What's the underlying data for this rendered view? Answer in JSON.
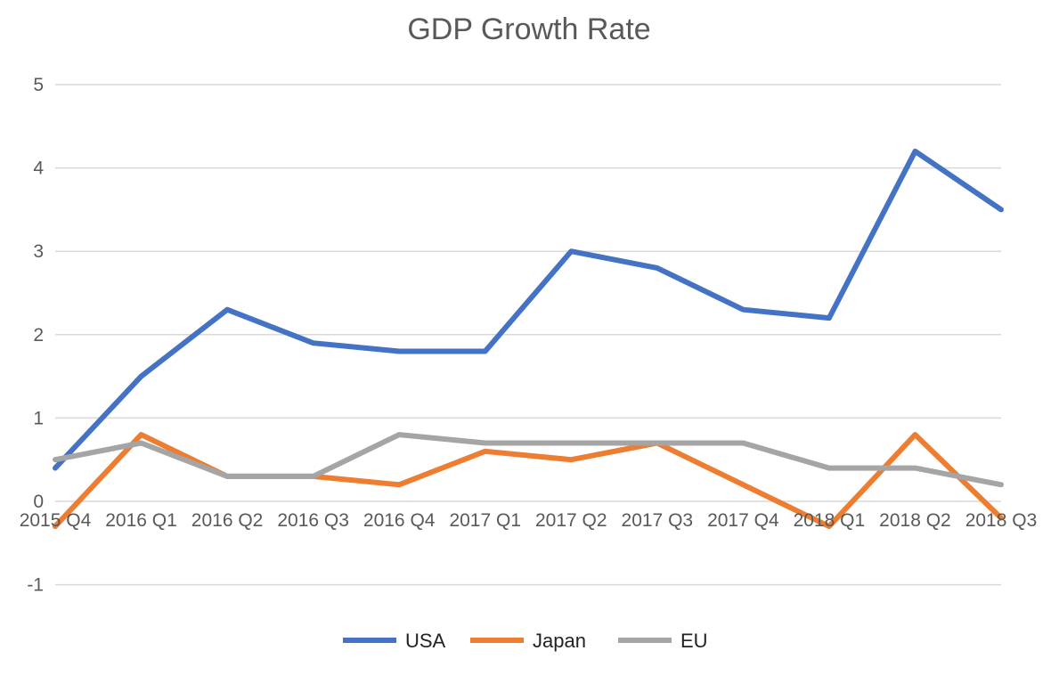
{
  "chart_data": {
    "type": "line",
    "title": "GDP Growth Rate",
    "xlabel": "",
    "ylabel": "",
    "ylim": [
      -1,
      5
    ],
    "yticks": [
      5,
      4,
      3,
      2,
      1,
      0,
      -1
    ],
    "grid": true,
    "legend_position": "bottom",
    "categories": [
      "2015 Q4",
      "2016 Q1",
      "2016 Q2",
      "2016 Q3",
      "2016 Q4",
      "2017 Q1",
      "2017 Q2",
      "2017 Q3",
      "2017 Q4",
      "2018 Q1",
      "2018 Q2",
      "2018 Q3"
    ],
    "series": [
      {
        "name": "USA",
        "color": "#4472c4",
        "values": [
          0.4,
          1.5,
          2.3,
          1.9,
          1.8,
          1.8,
          3.0,
          2.8,
          2.3,
          2.2,
          4.2,
          3.5
        ]
      },
      {
        "name": "Japan",
        "color": "#ed7d31",
        "values": [
          -0.3,
          0.8,
          0.3,
          0.3,
          0.2,
          0.6,
          0.5,
          0.7,
          0.2,
          -0.3,
          0.8,
          -0.2
        ]
      },
      {
        "name": "EU",
        "color": "#a5a5a5",
        "values": [
          0.5,
          0.7,
          0.3,
          0.3,
          0.8,
          0.7,
          0.7,
          0.7,
          0.7,
          0.4,
          0.4,
          0.2
        ]
      }
    ]
  }
}
